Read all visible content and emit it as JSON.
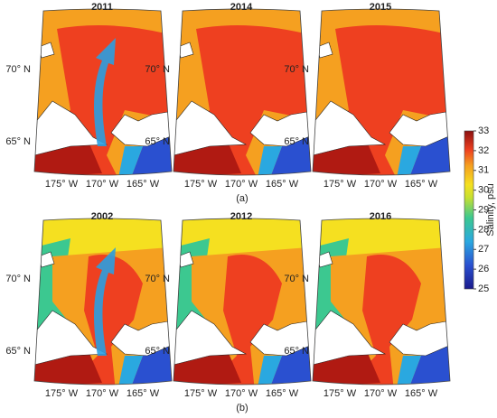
{
  "panels": [
    {
      "title": "2011"
    },
    {
      "title": "2014"
    },
    {
      "title": "2015"
    },
    {
      "title": "2002"
    },
    {
      "title": "2012"
    },
    {
      "title": "2016"
    }
  ],
  "lat_labels": [
    "70° N",
    "65° N"
  ],
  "lon_labels": [
    "175° W",
    "170° W",
    "165° W"
  ],
  "row_labels": [
    "(a)",
    "(b)"
  ],
  "colorbar": {
    "label": "Salinity, psu",
    "range": [
      25,
      33
    ],
    "ticks": [
      25,
      26,
      27,
      28,
      29,
      30,
      31,
      32,
      33
    ]
  }
}
